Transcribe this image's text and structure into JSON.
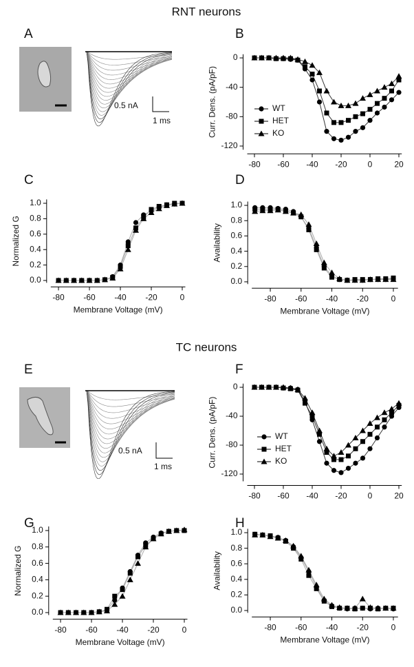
{
  "headings": [
    "RNT neurons",
    "TC neurons"
  ],
  "image_panels": [
    {
      "panel": "A",
      "scale_current": "0.5 nA",
      "scale_time": "1 ms"
    },
    {
      "panel": "E",
      "scale_current": "0.5 nA",
      "scale_time": "1 ms"
    }
  ],
  "chart_data": [
    {
      "type": "line",
      "panel": "B",
      "ylabel": "Curr. Dens. (pA/pF)",
      "x": [
        -80,
        -75,
        -70,
        -65,
        -60,
        -55,
        -50,
        -45,
        -40,
        -35,
        -30,
        -25,
        -20,
        -15,
        -10,
        -5,
        0,
        5,
        10,
        15,
        20
      ],
      "series": [
        {
          "name": "WT",
          "color": "#000",
          "marker": "circle",
          "values": [
            0,
            0,
            0,
            -1,
            -1,
            -2,
            -3,
            -15,
            -30,
            -60,
            -100,
            -110,
            -112,
            -108,
            -100,
            -95,
            -85,
            -75,
            -67,
            -57,
            -47
          ]
        },
        {
          "name": "HET",
          "color": "#000",
          "marker": "square",
          "values": [
            0,
            0,
            0,
            -1,
            -1,
            -1,
            -3,
            -12,
            -22,
            -45,
            -75,
            -88,
            -88,
            -85,
            -80,
            -76,
            -70,
            -62,
            -55,
            -45,
            -30
          ]
        },
        {
          "name": "KO",
          "color": "#000",
          "marker": "triangle",
          "values": [
            0,
            0,
            0,
            0,
            0,
            0,
            -2,
            -5,
            -10,
            -20,
            -45,
            -60,
            -65,
            -65,
            -62,
            -55,
            -50,
            -45,
            -40,
            -35,
            -25
          ]
        }
      ],
      "xlim": [
        -85,
        22
      ],
      "xticks": [
        -80,
        -60,
        -40,
        -20,
        0,
        20
      ],
      "ylim": [
        -125,
        5
      ],
      "yticks": [
        0,
        -40,
        -80,
        -120
      ],
      "line_color": "#333",
      "legend": "lower left"
    },
    {
      "type": "line",
      "panel": "C",
      "xlabel": "Membrane Voltage (mV)",
      "ylabel": "Normalized G",
      "x": [
        -80,
        -75,
        -70,
        -65,
        -60,
        -55,
        -50,
        -45,
        -40,
        -35,
        -30,
        -25,
        -20,
        -15,
        -10,
        -5,
        0
      ],
      "series": [
        {
          "color": "#000",
          "marker": "circle",
          "values": [
            0,
            0,
            0,
            0,
            0,
            0,
            0.01,
            0.05,
            0.2,
            0.5,
            0.75,
            0.85,
            0.9,
            0.95,
            0.98,
            0.99,
            1.0
          ]
        },
        {
          "color": "#000",
          "marker": "square",
          "values": [
            0,
            0,
            0,
            0,
            0,
            0,
            0.01,
            0.04,
            0.18,
            0.45,
            0.68,
            0.82,
            0.92,
            0.96,
            0.98,
            1.0,
            1.0
          ]
        },
        {
          "color": "#000",
          "marker": "triangle",
          "values": [
            0,
            0,
            0,
            0,
            0,
            0,
            0.01,
            0.03,
            0.15,
            0.4,
            0.65,
            0.8,
            0.88,
            0.93,
            0.97,
            0.99,
            1.0
          ]
        }
      ],
      "xlim": [
        -85,
        2
      ],
      "xticks": [
        -80,
        -60,
        -40,
        -20,
        0
      ],
      "ylim": [
        -0.03,
        1.05
      ],
      "yticks": [
        {
          "value": 0,
          "label": "0.0"
        },
        0.2,
        0.4,
        0.6,
        0.8,
        {
          "value": 1,
          "label": "1.0"
        }
      ],
      "line_color": "#aaa"
    },
    {
      "type": "line",
      "panel": "D",
      "xlabel": "Membrane Voltage (mV)",
      "ylabel": "Availability",
      "x": [
        -90,
        -85,
        -80,
        -75,
        -70,
        -65,
        -60,
        -55,
        -50,
        -45,
        -40,
        -35,
        -30,
        -25,
        -20,
        -15,
        -10,
        -5,
        0
      ],
      "series": [
        {
          "color": "#000",
          "marker": "circle",
          "values": [
            0.97,
            0.97,
            0.97,
            0.96,
            0.95,
            0.92,
            0.85,
            0.7,
            0.45,
            0.2,
            0.08,
            0.03,
            0.02,
            0.02,
            0.02,
            0.03,
            0.03,
            0.03,
            0.04
          ]
        },
        {
          "color": "#000",
          "marker": "square",
          "values": [
            0.95,
            0.95,
            0.95,
            0.95,
            0.93,
            0.9,
            0.85,
            0.68,
            0.42,
            0.18,
            0.06,
            0.03,
            0.02,
            0.03,
            0.03,
            0.03,
            0.04,
            0.04,
            0.05
          ]
        },
        {
          "color": "#000",
          "marker": "triangle",
          "values": [
            0.92,
            0.93,
            0.93,
            0.94,
            0.92,
            0.9,
            0.88,
            0.75,
            0.5,
            0.25,
            0.12,
            0.04,
            0.02,
            0.02,
            0.02,
            0.03,
            0.03,
            0.03,
            0.03
          ]
        }
      ],
      "xlim": [
        -92,
        3
      ],
      "xticks": [
        -80,
        -60,
        -40,
        -20,
        0
      ],
      "ylim": [
        -0.03,
        1.05
      ],
      "yticks": [
        {
          "value": 0,
          "label": "0.0"
        },
        0.2,
        0.4,
        0.6,
        0.8,
        {
          "value": 1,
          "label": "1.0"
        }
      ],
      "line_color": "#aaa"
    },
    {
      "type": "line",
      "panel": "F",
      "ylabel": "Curr. Dens. (pA/pF)",
      "x": [
        -80,
        -75,
        -70,
        -65,
        -60,
        -55,
        -50,
        -45,
        -40,
        -35,
        -30,
        -25,
        -20,
        -15,
        -10,
        -5,
        0,
        5,
        10,
        15,
        20
      ],
      "series": [
        {
          "name": "WT",
          "color": "#000",
          "marker": "circle",
          "values": [
            0,
            0,
            0,
            0,
            -1,
            -1,
            -3,
            -20,
            -45,
            -75,
            -105,
            -115,
            -118,
            -112,
            -105,
            -98,
            -85,
            -70,
            -55,
            -40,
            -28
          ]
        },
        {
          "name": "HET",
          "color": "#000",
          "marker": "square",
          "values": [
            0,
            0,
            0,
            0,
            -1,
            -2,
            -4,
            -22,
            -40,
            -65,
            -90,
            -100,
            -100,
            -95,
            -85,
            -75,
            -65,
            -55,
            -45,
            -35,
            -25
          ]
        },
        {
          "name": "KO",
          "color": "#000",
          "marker": "triangle",
          "values": [
            0,
            0,
            0,
            0,
            0,
            -1,
            -3,
            -15,
            -35,
            -60,
            -85,
            -95,
            -90,
            -80,
            -70,
            -60,
            -50,
            -42,
            -35,
            -30,
            -22
          ]
        }
      ],
      "xlim": [
        -85,
        22
      ],
      "xticks": [
        -80,
        -60,
        -40,
        -20,
        0,
        20
      ],
      "ylim": [
        -130,
        5
      ],
      "yticks": [
        0,
        -40,
        -80,
        -120
      ],
      "line_color": "#333",
      "legend": "lower left"
    },
    {
      "type": "line",
      "panel": "G",
      "xlabel": "Membrane Voltage (mV)",
      "ylabel": "Normalized G",
      "x": [
        -80,
        -75,
        -70,
        -65,
        -60,
        -55,
        -50,
        -45,
        -40,
        -35,
        -30,
        -25,
        -20,
        -15,
        -10,
        -5,
        0
      ],
      "series": [
        {
          "color": "#000",
          "marker": "circle",
          "values": [
            0,
            0,
            0,
            0,
            0,
            0.01,
            0.03,
            0.15,
            0.3,
            0.5,
            0.7,
            0.85,
            0.92,
            0.97,
            0.99,
            1.0,
            1.0
          ]
        },
        {
          "color": "#000",
          "marker": "square",
          "values": [
            0,
            0,
            0,
            0,
            0,
            0.01,
            0.04,
            0.2,
            0.28,
            0.48,
            0.68,
            0.82,
            0.9,
            0.96,
            0.99,
            1.0,
            1.0
          ]
        },
        {
          "color": "#000",
          "marker": "triangle",
          "values": [
            0,
            0,
            0,
            0,
            0,
            0.01,
            0.02,
            0.1,
            0.2,
            0.4,
            0.6,
            0.8,
            0.9,
            0.96,
            0.99,
            1.0,
            1.01
          ]
        }
      ],
      "xlim": [
        -85,
        2
      ],
      "xticks": [
        -80,
        -60,
        -40,
        -20,
        0
      ],
      "ylim": [
        -0.03,
        1.05
      ],
      "yticks": [
        {
          "value": 0,
          "label": "0.0"
        },
        0.2,
        0.4,
        0.6,
        0.8,
        {
          "value": 1,
          "label": "1.0"
        }
      ],
      "line_color": "#aaa"
    },
    {
      "type": "line",
      "panel": "H",
      "xlabel": "Membrane Voltage (mV)",
      "ylabel": "Availability",
      "x": [
        -90,
        -85,
        -80,
        -75,
        -70,
        -65,
        -60,
        -55,
        -50,
        -45,
        -40,
        -35,
        -30,
        -25,
        -20,
        -15,
        -10,
        -5,
        0
      ],
      "series": [
        {
          "color": "#000",
          "marker": "circle",
          "values": [
            0.98,
            0.97,
            0.96,
            0.94,
            0.9,
            0.82,
            0.68,
            0.5,
            0.3,
            0.13,
            0.06,
            0.03,
            0.02,
            0.03,
            0.03,
            0.02,
            0.03,
            0.03,
            0.02
          ]
        },
        {
          "color": "#000",
          "marker": "square",
          "values": [
            0.98,
            0.97,
            0.96,
            0.93,
            0.89,
            0.8,
            0.66,
            0.45,
            0.28,
            0.12,
            0.05,
            0.03,
            0.03,
            0.02,
            0.03,
            0.03,
            0.02,
            0.03,
            0.03
          ]
        },
        {
          "color": "#000",
          "marker": "triangle",
          "values": [
            0.97,
            0.97,
            0.95,
            0.93,
            0.9,
            0.83,
            0.7,
            0.52,
            0.33,
            0.15,
            0.07,
            0.04,
            0.03,
            0.03,
            0.15,
            0.04,
            0.03,
            0.03,
            0.03
          ]
        }
      ],
      "xlim": [
        -92,
        3
      ],
      "xticks": [
        -80,
        -60,
        -40,
        -20,
        0
      ],
      "ylim": [
        -0.03,
        1.05
      ],
      "yticks": [
        {
          "value": 0,
          "label": "0.0"
        },
        0.2,
        0.4,
        0.6,
        0.8,
        {
          "value": 1,
          "label": "1.0"
        }
      ],
      "line_color": "#aaa"
    }
  ]
}
